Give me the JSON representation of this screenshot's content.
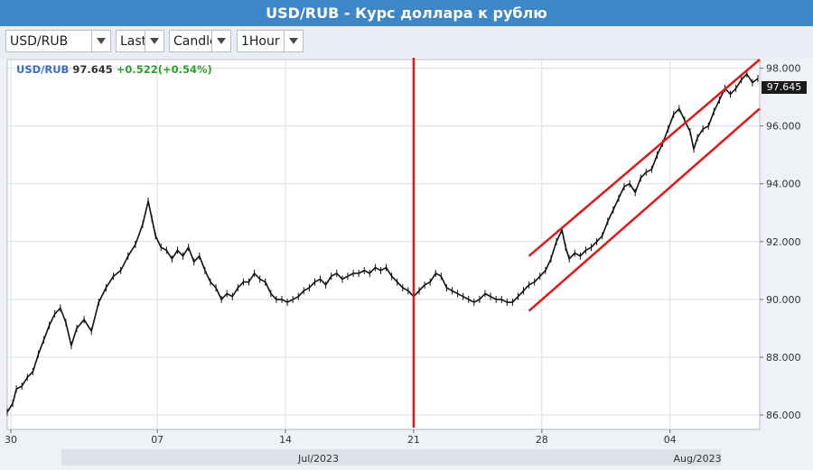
{
  "title": "USD/RUB - Курс доллара к рублю",
  "toolbar": {
    "symbol": "USD/RUB",
    "price_type": "Last",
    "chart_style": "Candle",
    "interval": "1Hour",
    "icons": [
      "dropdown-arrow-icon"
    ]
  },
  "info": {
    "symbol": "USD/RUB",
    "last": "97.645",
    "change": "+0.522",
    "change_pct": "(+0.54%)"
  },
  "colors": {
    "title_bar": "#3d87c8",
    "price_line": "#111111",
    "channel": "#e01818",
    "change_positive": "#2aa02a",
    "symbol": "#3a6cc6"
  },
  "chart_data": {
    "type": "line",
    "title": "",
    "xlabel": "",
    "ylabel": "",
    "ylim": [
      85.5,
      98.3
    ],
    "y_ticks": [
      "86.000",
      "88.000",
      "90.000",
      "92.000",
      "94.000",
      "96.000",
      "98.000"
    ],
    "x_day_ticks": [
      {
        "label": "30",
        "day": 30
      },
      {
        "label": "07",
        "day": 38
      },
      {
        "label": "14",
        "day": 45
      },
      {
        "label": "21",
        "day": 52
      },
      {
        "label": "28",
        "day": 59
      },
      {
        "label": "04",
        "day": 66
      }
    ],
    "x_month_ticks": [
      {
        "label": "Jul/2023",
        "day": 46.8
      },
      {
        "label": "Aug/2023",
        "day": 67.5
      }
    ],
    "xlim": [
      29.8,
      70.9
    ],
    "legend": "top-left",
    "grid": true,
    "series": [
      {
        "values": [
          [
            29.8,
            86.1
          ],
          [
            30.1,
            86.4
          ],
          [
            30.3,
            86.9
          ],
          [
            30.6,
            87.0
          ],
          [
            30.9,
            87.3
          ],
          [
            31.2,
            87.5
          ],
          [
            31.5,
            88.1
          ],
          [
            31.8,
            88.6
          ],
          [
            32.1,
            89.1
          ],
          [
            32.4,
            89.5
          ],
          [
            32.7,
            89.7
          ],
          [
            33.0,
            89.2
          ],
          [
            33.3,
            88.4
          ],
          [
            33.6,
            89.0
          ],
          [
            34.0,
            89.3
          ],
          [
            34.4,
            88.9
          ],
          [
            34.8,
            89.9
          ],
          [
            35.2,
            90.4
          ],
          [
            35.6,
            90.8
          ],
          [
            36.0,
            91.0
          ],
          [
            36.4,
            91.5
          ],
          [
            36.8,
            91.9
          ],
          [
            37.2,
            92.6
          ],
          [
            37.5,
            93.4
          ],
          [
            37.7,
            92.8
          ],
          [
            37.9,
            92.2
          ],
          [
            38.2,
            91.8
          ],
          [
            38.5,
            91.7
          ],
          [
            38.8,
            91.4
          ],
          [
            39.1,
            91.7
          ],
          [
            39.4,
            91.5
          ],
          [
            39.7,
            91.8
          ],
          [
            40.0,
            91.3
          ],
          [
            40.3,
            91.5
          ],
          [
            40.6,
            91.0
          ],
          [
            40.9,
            90.6
          ],
          [
            41.2,
            90.4
          ],
          [
            41.5,
            90.0
          ],
          [
            41.8,
            90.2
          ],
          [
            42.1,
            90.1
          ],
          [
            42.4,
            90.4
          ],
          [
            42.7,
            90.6
          ],
          [
            43.0,
            90.6
          ],
          [
            43.3,
            90.9
          ],
          [
            43.6,
            90.7
          ],
          [
            43.9,
            90.6
          ],
          [
            44.2,
            90.2
          ],
          [
            44.5,
            90.0
          ],
          [
            44.8,
            90.0
          ],
          [
            45.1,
            89.9
          ],
          [
            45.4,
            90.0
          ],
          [
            45.7,
            90.1
          ],
          [
            46.0,
            90.3
          ],
          [
            46.3,
            90.4
          ],
          [
            46.6,
            90.6
          ],
          [
            46.9,
            90.7
          ],
          [
            47.2,
            90.5
          ],
          [
            47.5,
            90.8
          ],
          [
            47.8,
            90.9
          ],
          [
            48.1,
            90.7
          ],
          [
            48.4,
            90.8
          ],
          [
            48.7,
            90.9
          ],
          [
            49.0,
            90.9
          ],
          [
            49.3,
            91.0
          ],
          [
            49.6,
            90.9
          ],
          [
            49.9,
            91.1
          ],
          [
            50.2,
            91.0
          ],
          [
            50.5,
            91.1
          ],
          [
            50.8,
            90.8
          ],
          [
            51.1,
            90.6
          ],
          [
            51.4,
            90.4
          ],
          [
            51.7,
            90.3
          ],
          [
            52.0,
            90.1
          ],
          [
            52.3,
            90.3
          ],
          [
            52.6,
            90.5
          ],
          [
            52.9,
            90.6
          ],
          [
            53.2,
            90.9
          ],
          [
            53.5,
            90.8
          ],
          [
            53.8,
            90.4
          ],
          [
            54.1,
            90.3
          ],
          [
            54.4,
            90.2
          ],
          [
            54.7,
            90.1
          ],
          [
            55.0,
            90.0
          ],
          [
            55.3,
            89.9
          ],
          [
            55.6,
            90.0
          ],
          [
            55.9,
            90.2
          ],
          [
            56.2,
            90.1
          ],
          [
            56.5,
            90.0
          ],
          [
            56.8,
            90.0
          ],
          [
            57.1,
            89.9
          ],
          [
            57.4,
            89.9
          ],
          [
            57.7,
            90.1
          ],
          [
            58.0,
            90.3
          ],
          [
            58.3,
            90.5
          ],
          [
            58.6,
            90.6
          ],
          [
            58.9,
            90.8
          ],
          [
            59.2,
            91.0
          ],
          [
            59.5,
            91.4
          ],
          [
            59.8,
            92.0
          ],
          [
            60.1,
            92.4
          ],
          [
            60.3,
            91.8
          ],
          [
            60.5,
            91.4
          ],
          [
            60.8,
            91.6
          ],
          [
            61.1,
            91.5
          ],
          [
            61.4,
            91.7
          ],
          [
            61.7,
            91.8
          ],
          [
            62.0,
            92.0
          ],
          [
            62.3,
            92.2
          ],
          [
            62.6,
            92.7
          ],
          [
            62.9,
            93.1
          ],
          [
            63.2,
            93.5
          ],
          [
            63.5,
            93.9
          ],
          [
            63.8,
            94.0
          ],
          [
            64.1,
            93.7
          ],
          [
            64.4,
            94.2
          ],
          [
            64.7,
            94.4
          ],
          [
            65.0,
            94.5
          ],
          [
            65.3,
            95.0
          ],
          [
            65.6,
            95.4
          ],
          [
            65.9,
            95.9
          ],
          [
            66.2,
            96.4
          ],
          [
            66.5,
            96.6
          ],
          [
            66.8,
            96.2
          ],
          [
            67.1,
            95.8
          ],
          [
            67.3,
            95.2
          ],
          [
            67.5,
            95.6
          ],
          [
            67.8,
            95.9
          ],
          [
            68.1,
            96.0
          ],
          [
            68.4,
            96.5
          ],
          [
            68.7,
            96.9
          ],
          [
            69.0,
            97.3
          ],
          [
            69.3,
            97.1
          ],
          [
            69.6,
            97.3
          ],
          [
            69.9,
            97.6
          ],
          [
            70.2,
            97.8
          ],
          [
            70.5,
            97.5
          ],
          [
            70.8,
            97.645
          ]
        ]
      }
    ],
    "vertical_marker": {
      "day": 52.0
    },
    "channel_lines": [
      {
        "from": [
          58.3,
          91.5
        ],
        "to": [
          70.9,
          98.3
        ]
      },
      {
        "from": [
          58.3,
          89.6
        ],
        "to": [
          70.9,
          96.6
        ]
      }
    ]
  }
}
